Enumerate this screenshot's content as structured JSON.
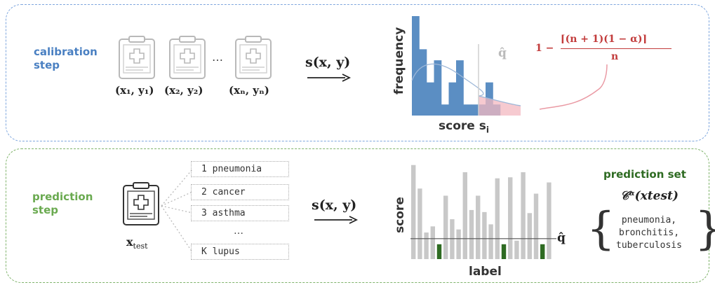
{
  "calibration": {
    "step_label_line1": "calibration",
    "step_label_line2": "step",
    "pairs": [
      "(x₁, y₁)",
      "(x₂, y₂)",
      "(xₙ, yₙ)"
    ],
    "ellipsis": "…",
    "score_function": "s(x, y)",
    "qhat_label": "q̂",
    "quantile_formula_prefix": "1 −",
    "quantile_formula_numerator": "⌈(n + 1)(1 − α)⌉",
    "quantile_formula_denominator": "n",
    "hist_ylabel": "frequency",
    "hist_xlabel": "score s",
    "hist_xlabel_sub": "i"
  },
  "prediction": {
    "step_label_line1": "prediction",
    "step_label_line2": "step",
    "test_input": "x",
    "test_input_sub": "test",
    "labels": [
      "1 pneumonia",
      "2 cancer",
      "3 asthma",
      "K lupus"
    ],
    "labels_ellipsis": "…",
    "score_function": "s(x, y)",
    "bar_ylabel": "score",
    "bar_xlabel": "label",
    "qhat_label": "q̂",
    "set_title": "prediction set",
    "set_formula": "𝒞ᵅ(xtest)",
    "set_items": [
      "pneumonia,",
      "bronchitis,",
      "tuberculosis"
    ]
  },
  "colors": {
    "calibration_border": "#7ea6de",
    "prediction_border": "#7fb36a",
    "calibration_text": "#4a80c2",
    "prediction_text": "#6aaa50",
    "hist_bar": "#5b8ec3",
    "tail_fill": "#f3b8c0",
    "formula_red": "#c23b3b",
    "score_bar": "#c8c8c8",
    "selected_bar": "#2e6b22"
  },
  "chart_data": [
    {
      "type": "bar",
      "ylabel": "frequency",
      "xlabel": "score s_i",
      "values": [
        9,
        6,
        3,
        5,
        1,
        3,
        5,
        1,
        1,
        1,
        3,
        1
      ],
      "qhat_bin_index": 10
    },
    {
      "type": "bar",
      "ylabel": "score",
      "xlabel": "label",
      "values": [
        9.2,
        6.9,
        2.6,
        3.2,
        7.0,
        6.2,
        3.9,
        2.9,
        8.5,
        4.8,
        6.2,
        4.6,
        3.4,
        7.9,
        3.9,
        8.0,
        1.8,
        8.5,
        4.5,
        6.4,
        2.9,
        7.5
      ],
      "selected": [
        false,
        false,
        false,
        false,
        true,
        false,
        false,
        false,
        false,
        false,
        false,
        false,
        false,
        false,
        true,
        false,
        false,
        false,
        false,
        false,
        true,
        false
      ],
      "qhat": 2.0
    }
  ]
}
